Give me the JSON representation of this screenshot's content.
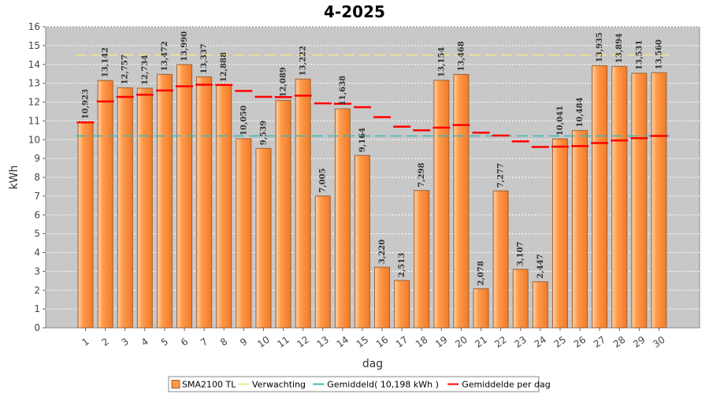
{
  "chart_data": {
    "type": "bar",
    "title": "4-2025",
    "xlabel": "dag",
    "ylabel": "kWh",
    "ylim": [
      0,
      16
    ],
    "yticks": [
      0,
      1,
      2,
      3,
      4,
      5,
      6,
      7,
      8,
      9,
      10,
      11,
      12,
      13,
      14,
      15,
      16
    ],
    "grid": true,
    "legend_position": "bottom",
    "categories": [
      "1",
      "2",
      "3",
      "4",
      "5",
      "6",
      "7",
      "8",
      "9",
      "10",
      "11",
      "12",
      "13",
      "14",
      "15",
      "16",
      "17",
      "18",
      "19",
      "20",
      "21",
      "22",
      "23",
      "24",
      "25",
      "26",
      "27",
      "28",
      "29",
      "30"
    ],
    "series": [
      {
        "name": "SMA2100 TL",
        "kind": "bar",
        "color": "#ff9a4a",
        "values": [
          10.923,
          13.142,
          12.757,
          12.734,
          13.472,
          13.99,
          13.337,
          12.888,
          10.05,
          9.539,
          12.089,
          13.222,
          7.005,
          11.638,
          9.164,
          3.22,
          2.513,
          7.298,
          13.154,
          13.468,
          2.078,
          7.277,
          3.107,
          2.447,
          10.041,
          10.484,
          13.935,
          13.894,
          13.531,
          13.56
        ],
        "labels": [
          "10,923",
          "13,142",
          "12,757",
          "12,734",
          "13,472",
          "13,990",
          "13,337",
          "12,888",
          "10,050",
          "9,539",
          "12,089",
          "13,222",
          "7,005",
          "11,638",
          "9,164",
          "3,220",
          "2,513",
          "7,298",
          "13,154",
          "13,468",
          "2,078",
          "7,277",
          "3,107",
          "2,447",
          "10,041",
          "10,484",
          "13,935",
          "13,894",
          "13,531",
          "13,560"
        ]
      },
      {
        "name": "Verwachting",
        "kind": "dashed-line",
        "color": "#f0e68c",
        "value": 14.5
      },
      {
        "name": "Gemiddeld( 10,198 kWh )",
        "kind": "dashed-line",
        "color": "#3cb8b8",
        "value": 10.198
      },
      {
        "name": "Gemiddelde per dag",
        "kind": "step-markers",
        "color": "#ff0000",
        "values": [
          10.923,
          12.03,
          12.27,
          12.39,
          12.61,
          12.84,
          12.92,
          12.91,
          12.59,
          12.28,
          12.26,
          12.34,
          11.93,
          11.91,
          11.73,
          11.2,
          10.69,
          10.5,
          10.64,
          10.78,
          10.37,
          10.22,
          9.91,
          9.61,
          9.63,
          9.66,
          9.82,
          9.96,
          10.08,
          10.198
        ]
      }
    ]
  },
  "legend": [
    {
      "label": "SMA2100 TL",
      "swatch": "box",
      "color": "#ff9a4a"
    },
    {
      "label": "Verwachting",
      "swatch": "line",
      "color": "#f0e68c"
    },
    {
      "label": "Gemiddeld( 10,198 kWh )",
      "swatch": "line",
      "color": "#3cb8b8"
    },
    {
      "label": "Gemiddelde per dag",
      "swatch": "line",
      "color": "#ff0000"
    }
  ],
  "colors": {
    "plot_background": "#c8c8c8",
    "grid": "#ffffff",
    "bar_edge": "#a06030"
  }
}
